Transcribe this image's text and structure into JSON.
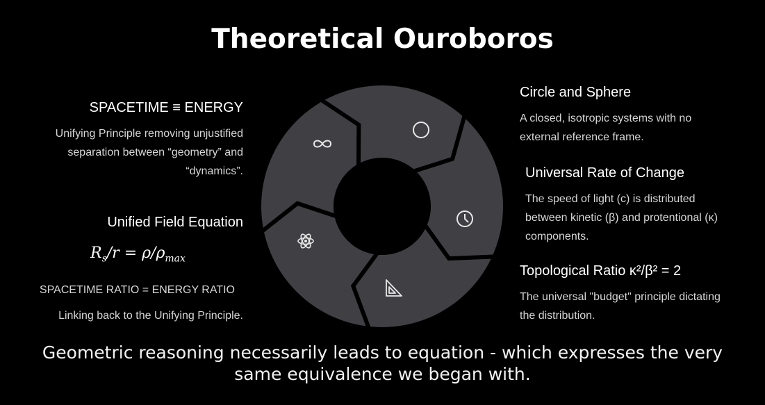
{
  "title": "Theoretical Ouroboros",
  "left": {
    "block1": {
      "heading": "SPACETIME ≡ ENERGY",
      "lines": [
        "Unifying Principle removing unjustified",
        "separation between “geometry” and",
        "“dynamics”."
      ]
    },
    "block2": {
      "heading": "Unified Field Equation",
      "equation": {
        "lhs": "R",
        "lhs_sub": "s",
        "mid": "/r = ρ/ρ",
        "rhs_sub": "max"
      },
      "ratio": "SPACETIME RATIO = ENERGY RATIO",
      "linking": "Linking back to the Unifying Principle."
    }
  },
  "right": {
    "block1": {
      "heading": "Circle and Sphere",
      "lines": [
        "A closed, isotropic systems with no",
        "external reference frame."
      ]
    },
    "block2": {
      "heading": "Universal Rate of Change",
      "lines": [
        "The speed of light (c) is distributed",
        "between kinetic (β) and protentional (κ)",
        "components."
      ]
    },
    "block3": {
      "heading": "Topological Ratio κ²/β² = 2",
      "lines": [
        "The universal \"budget\" principle dictating",
        "the distribution."
      ]
    }
  },
  "caption": {
    "line1": "Geometric reasoning necessarily leads to equation - which expresses the very",
    "line2": "same equivalence we began with."
  },
  "wheel": {
    "segment_color": "#404044",
    "gap_color": "#000000",
    "icons": [
      "infinity-icon",
      "circle-icon",
      "clock-icon",
      "set-square-icon",
      "atom-icon"
    ]
  }
}
